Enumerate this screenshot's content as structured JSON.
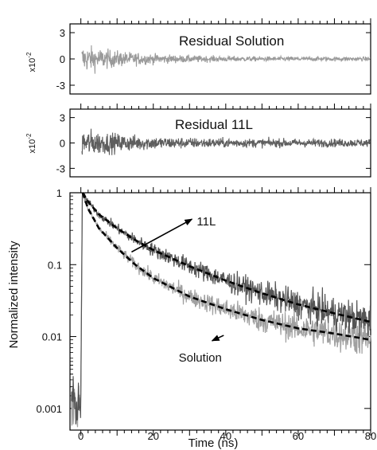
{
  "chart_data": [
    {
      "type": "line",
      "title": "Residual Solution",
      "ylabel": "x10",
      "ylabel_exponent": "-2",
      "xlim": [
        -3,
        80
      ],
      "ylim": [
        -4,
        4
      ],
      "yticks": [
        3,
        0,
        -3
      ],
      "grid": false,
      "series": [
        {
          "color": "#9a9a9a",
          "noise_amplitude_start": 2.8,
          "noise_amplitude_end": 0.4
        }
      ]
    },
    {
      "type": "line",
      "title": "Residual 11L",
      "ylabel": "x10",
      "ylabel_exponent": "-2",
      "xlim": [
        -3,
        80
      ],
      "ylim": [
        -4,
        4
      ],
      "yticks": [
        3,
        0,
        -3
      ],
      "grid": false,
      "series": [
        {
          "color": "#5e5e5e",
          "noise_amplitude_start": 3.0,
          "noise_amplitude_end": 0.8
        }
      ]
    },
    {
      "type": "line",
      "xlabel": "Time (ns)",
      "ylabel": "Normalized intensity",
      "xlim": [
        -3,
        80
      ],
      "ylim": [
        0.0005,
        1
      ],
      "yscale": "log",
      "xticks": [
        0,
        20,
        40,
        60,
        80
      ],
      "yticks": [
        1,
        0.1,
        0.01,
        0.001
      ],
      "ytick_labels": [
        "1",
        "0.1",
        "0.01",
        "0.001"
      ],
      "grid": false,
      "annotations": [
        {
          "text": "11L",
          "at": [
            32,
            0.35
          ],
          "arrow_to": [
            14,
            0.15
          ]
        },
        {
          "text": "Solution",
          "at": [
            27,
            0.0045
          ],
          "arrow_to": [
            39,
            0.0115
          ]
        }
      ],
      "series": [
        {
          "label": "11L",
          "color": "#555555",
          "x": [
            0.5,
            2,
            5,
            10,
            15,
            20,
            30,
            40,
            50,
            60,
            70,
            80
          ],
          "y": [
            1.0,
            0.75,
            0.5,
            0.32,
            0.22,
            0.16,
            0.095,
            0.06,
            0.04,
            0.028,
            0.021,
            0.016
          ]
        },
        {
          "label": "Solution",
          "color": "#a0a0a0",
          "x": [
            0.5,
            2,
            5,
            10,
            15,
            20,
            30,
            40,
            50,
            60,
            70,
            80
          ],
          "y": [
            1.0,
            0.6,
            0.32,
            0.17,
            0.1,
            0.065,
            0.036,
            0.024,
            0.017,
            0.013,
            0.011,
            0.009
          ]
        }
      ],
      "fit_style": "black dashed"
    }
  ]
}
